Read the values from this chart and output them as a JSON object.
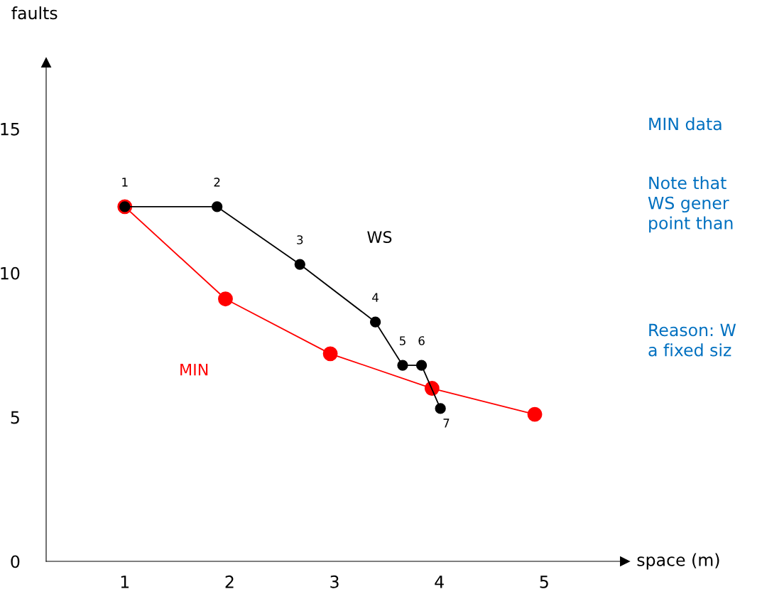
{
  "chart_data": {
    "type": "line",
    "xlabel": "space (m)",
    "ylabel": "faults",
    "xlim": [
      0.25,
      5.77
    ],
    "ylim": [
      0,
      17.3
    ],
    "xticks": [
      1,
      2,
      3,
      4,
      5
    ],
    "yticks": [
      0,
      5,
      10,
      15
    ],
    "grid": false,
    "legend": false,
    "marker": "circle",
    "line_style": "solid",
    "series": [
      {
        "name": "WS",
        "color": "#000000",
        "x": [
          1,
          1.88,
          2.67,
          3.39,
          3.65,
          3.83,
          4.01
        ],
        "values": [
          12.3,
          12.3,
          10.3,
          8.3,
          6.8,
          6.8,
          5.3
        ]
      },
      {
        "name": "MIN",
        "color": "#ff0000",
        "x": [
          1,
          1.96,
          2.96,
          3.93,
          4.91
        ],
        "values": [
          12.3,
          9.1,
          7.2,
          6.0,
          5.1
        ]
      }
    ],
    "annotations": [
      {
        "text": "1",
        "x": 1,
        "y": 12.3
      },
      {
        "text": "2",
        "x": 1.88,
        "y": 12.3
      },
      {
        "text": "3",
        "x": 2.67,
        "y": 10.3
      },
      {
        "text": "4",
        "x": 3.39,
        "y": 8.3
      },
      {
        "text": "5",
        "x": 3.65,
        "y": 6.8
      },
      {
        "text": "6",
        "x": 3.83,
        "y": 6.8
      },
      {
        "text": "7",
        "x": 4.01,
        "y": 5.3
      },
      "MIN data",
      "Note that\nWS gener\npoint than",
      "Reason: W\na fixed siz"
    ]
  }
}
